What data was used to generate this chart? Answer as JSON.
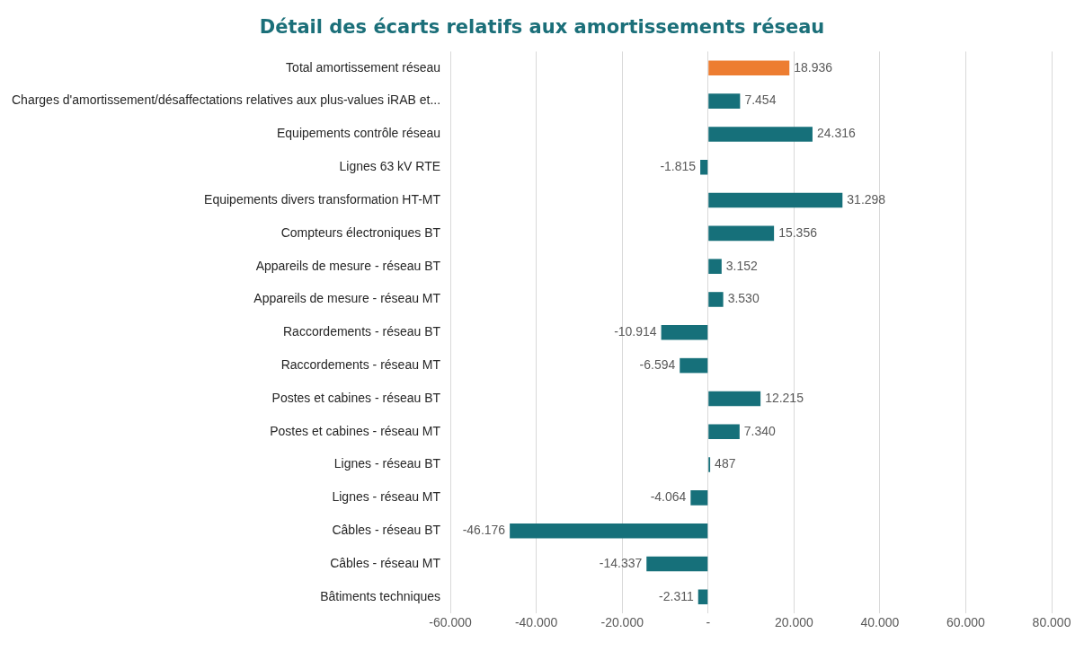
{
  "chart_data": {
    "type": "bar",
    "orientation": "horizontal",
    "title": "Détail des écarts relatifs aux amortissements réseau",
    "categories": [
      "Total amortissement réseau",
      "Charges d'amortissement/désaffectations relatives aux plus-values iRAB et...",
      "Equipements contrôle réseau",
      "Lignes 63 kV RTE",
      "Equipements divers transformation HT-MT",
      "Compteurs électroniques BT",
      "Appareils de mesure - réseau BT",
      "Appareils de mesure - réseau MT",
      "Raccordements - réseau BT",
      "Raccordements - réseau MT",
      "Postes et cabines - réseau BT",
      "Postes et cabines - réseau MT",
      "Lignes - réseau BT",
      "Lignes - réseau MT",
      "Câbles - réseau BT",
      "Câbles - réseau MT",
      "Bâtiments techniques"
    ],
    "values": [
      18936,
      7454,
      24316,
      -1815,
      31298,
      15356,
      3152,
      3530,
      -10914,
      -6594,
      12215,
      7340,
      487,
      -4064,
      -46176,
      -14337,
      -2311
    ],
    "colors": [
      "#ed7d31",
      "#16707a",
      "#16707a",
      "#16707a",
      "#16707a",
      "#16707a",
      "#16707a",
      "#16707a",
      "#16707a",
      "#16707a",
      "#16707a",
      "#16707a",
      "#16707a",
      "#16707a",
      "#16707a",
      "#16707a",
      "#16707a"
    ],
    "value_labels": [
      "18.936",
      "7.454",
      "24.316",
      "-1.815",
      "31.298",
      "15.356",
      "3.152",
      "3.530",
      "-10.914",
      "-6.594",
      "12.215",
      "7.340",
      "487",
      "-4.064",
      "-46.176",
      "-14.337",
      "-2.311"
    ],
    "xlim": [
      -60000,
      80000
    ],
    "xticks": [
      {
        "value": -60000,
        "label": "-60.000"
      },
      {
        "value": -40000,
        "label": "-40.000"
      },
      {
        "value": -20000,
        "label": "-20.000"
      },
      {
        "value": 0,
        "label": "-"
      },
      {
        "value": 20000,
        "label": "20.000"
      },
      {
        "value": 40000,
        "label": "40.000"
      },
      {
        "value": 60000,
        "label": "60.000"
      },
      {
        "value": 80000,
        "label": "80.000"
      }
    ],
    "grid": "x",
    "legend": false
  }
}
